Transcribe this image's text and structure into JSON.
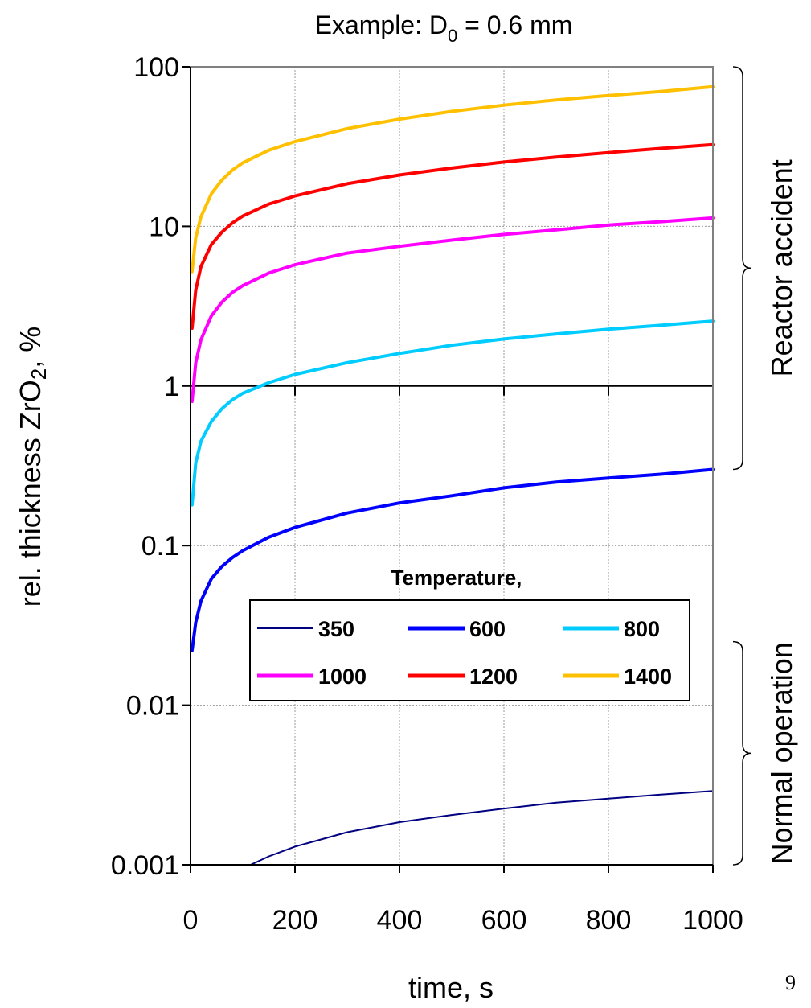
{
  "chart_data": {
    "type": "line",
    "title_prefix": "Example: D",
    "title_sub": "0",
    "title_suffix": " = 0.6 mm",
    "xlabel": "time, s",
    "ylabel_prefix": "rel. thickness ZrO",
    "ylabel_sub": "2",
    "ylabel_suffix": ", %",
    "xlim": [
      0,
      1000
    ],
    "ylim": [
      0.001,
      100
    ],
    "yscale": "log",
    "grid": true,
    "x_ticks": [
      {
        "value": 0,
        "label": "0"
      },
      {
        "value": 200,
        "label": "200"
      },
      {
        "value": 400,
        "label": "400"
      },
      {
        "value": 600,
        "label": "600"
      },
      {
        "value": 800,
        "label": "800"
      },
      {
        "value": 1000,
        "label": "1000"
      }
    ],
    "y_ticks": [
      {
        "value": 0.001,
        "label": "0.001"
      },
      {
        "value": 0.01,
        "label": "0.01"
      },
      {
        "value": 0.1,
        "label": "0.1"
      },
      {
        "value": 1,
        "label": "1"
      },
      {
        "value": 10,
        "label": "10"
      },
      {
        "value": 100,
        "label": "100"
      }
    ],
    "legend_title": "Temperature,",
    "legend_position": "lower-center",
    "series": [
      {
        "name": "350",
        "color": "#000080",
        "x": [
          115,
          150,
          200,
          300,
          400,
          500,
          600,
          700,
          800,
          900,
          1000
        ],
        "y": [
          0.001,
          0.00113,
          0.0013,
          0.0016,
          0.00185,
          0.00205,
          0.00225,
          0.00245,
          0.0026,
          0.00275,
          0.0029
        ]
      },
      {
        "name": "600",
        "color": "#0000ff",
        "x": [
          3,
          10,
          20,
          40,
          60,
          80,
          100,
          150,
          200,
          300,
          400,
          500,
          600,
          700,
          800,
          900,
          1000
        ],
        "y": [
          0.022,
          0.033,
          0.045,
          0.062,
          0.074,
          0.084,
          0.093,
          0.113,
          0.13,
          0.16,
          0.185,
          0.205,
          0.23,
          0.25,
          0.265,
          0.28,
          0.3
        ]
      },
      {
        "name": "800",
        "color": "#00ccff",
        "x": [
          3,
          10,
          20,
          40,
          60,
          80,
          100,
          150,
          200,
          300,
          400,
          500,
          600,
          700,
          800,
          900,
          1000
        ],
        "y": [
          0.18,
          0.33,
          0.45,
          0.6,
          0.72,
          0.82,
          0.9,
          1.05,
          1.18,
          1.4,
          1.6,
          1.8,
          1.97,
          2.12,
          2.27,
          2.4,
          2.55
        ]
      },
      {
        "name": "1000",
        "color": "#ff00ff",
        "x": [
          3,
          10,
          20,
          40,
          60,
          80,
          100,
          150,
          200,
          300,
          400,
          500,
          600,
          700,
          800,
          900,
          1000
        ],
        "y": [
          0.8,
          1.4,
          1.95,
          2.75,
          3.35,
          3.85,
          4.25,
          5.1,
          5.75,
          6.8,
          7.5,
          8.2,
          8.9,
          9.5,
          10.2,
          10.7,
          11.3
        ]
      },
      {
        "name": "1200",
        "color": "#ff0000",
        "x": [
          3,
          10,
          20,
          40,
          60,
          80,
          100,
          150,
          200,
          300,
          400,
          500,
          600,
          700,
          800,
          900,
          1000
        ],
        "y": [
          2.3,
          4.0,
          5.6,
          7.7,
          9.2,
          10.5,
          11.6,
          13.8,
          15.5,
          18.5,
          21.0,
          23.2,
          25.3,
          27.2,
          29.0,
          30.8,
          32.5
        ]
      },
      {
        "name": "1400",
        "color": "#ffc000",
        "x": [
          3,
          10,
          20,
          40,
          60,
          80,
          100,
          150,
          200,
          300,
          400,
          500,
          600,
          700,
          800,
          900,
          1000
        ],
        "y": [
          5.2,
          8.5,
          11.5,
          16.0,
          19.5,
          22.5,
          25.0,
          30.0,
          34.0,
          41.0,
          47.0,
          52.5,
          57.5,
          62.0,
          66.0,
          70.0,
          75.0
        ]
      }
    ],
    "annotations": [
      {
        "text": "Reactor accident",
        "y_from": 0.3,
        "y_to": 100
      },
      {
        "text": "Normal operation",
        "y_from": 0.001,
        "y_to": 0.025
      }
    ],
    "page_number": "9"
  }
}
